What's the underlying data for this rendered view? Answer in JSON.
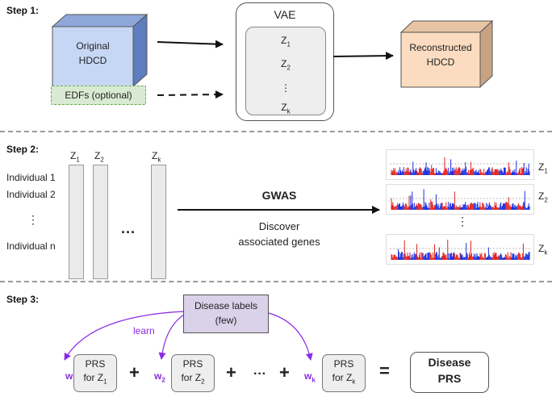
{
  "step1": {
    "label": "Step 1:",
    "original_line1": "Original",
    "original_line2": "HDCD",
    "edfs": "EDFs (optional)",
    "vae_title": "VAE",
    "latents": [
      "Z",
      "Z",
      "⋮",
      "Z"
    ],
    "latent_subs": [
      "1",
      "2",
      "",
      "k"
    ],
    "recon_line1": "Reconstructed",
    "recon_line2": "HDCD"
  },
  "step2": {
    "label": "Step 2:",
    "col_labels": [
      {
        "base": "Z",
        "sub": "1"
      },
      {
        "base": "Z",
        "sub": "2"
      },
      {
        "base": "Z",
        "sub": "k"
      }
    ],
    "individuals": [
      "Individual 1",
      "Individual 2",
      "⋮",
      "Individual n"
    ],
    "ellipsis": "···",
    "gwas": "GWAS",
    "discover_line1": "Discover",
    "discover_line2": "associated genes",
    "plot_labels": [
      {
        "base": "Z",
        "sub": "1"
      },
      {
        "base": "Z",
        "sub": "2"
      },
      {
        "base": "Z",
        "sub": "k"
      }
    ],
    "plot_vdots": "⋮"
  },
  "step3": {
    "label": "Step 3:",
    "disease_line1": "Disease labels",
    "disease_line2": "(few)",
    "learn": "learn",
    "weights": [
      {
        "base": "w",
        "sub": "1"
      },
      {
        "base": "w",
        "sub": "2"
      },
      {
        "base": "w",
        "sub": "k"
      }
    ],
    "prs_top": "PRS",
    "prs_for": "for Z",
    "prs_subs": [
      "1",
      "2",
      "k"
    ],
    "plus": "+",
    "dots": "···",
    "equals": "=",
    "result_line1": "Disease",
    "result_line2": "PRS"
  },
  "colors": {
    "original_front": "#c6d7f5",
    "original_side": "#5d7dbf",
    "recon_front": "#fbdcc0",
    "recon_side": "#c9a283",
    "edfs_fill": "#d9ead3",
    "edfs_border": "#6aa84f",
    "disease_fill": "#d9d2e9",
    "accent": "#8a2be2",
    "manhattan_red": "#e32222",
    "manhattan_blue": "#1c2fe0"
  }
}
